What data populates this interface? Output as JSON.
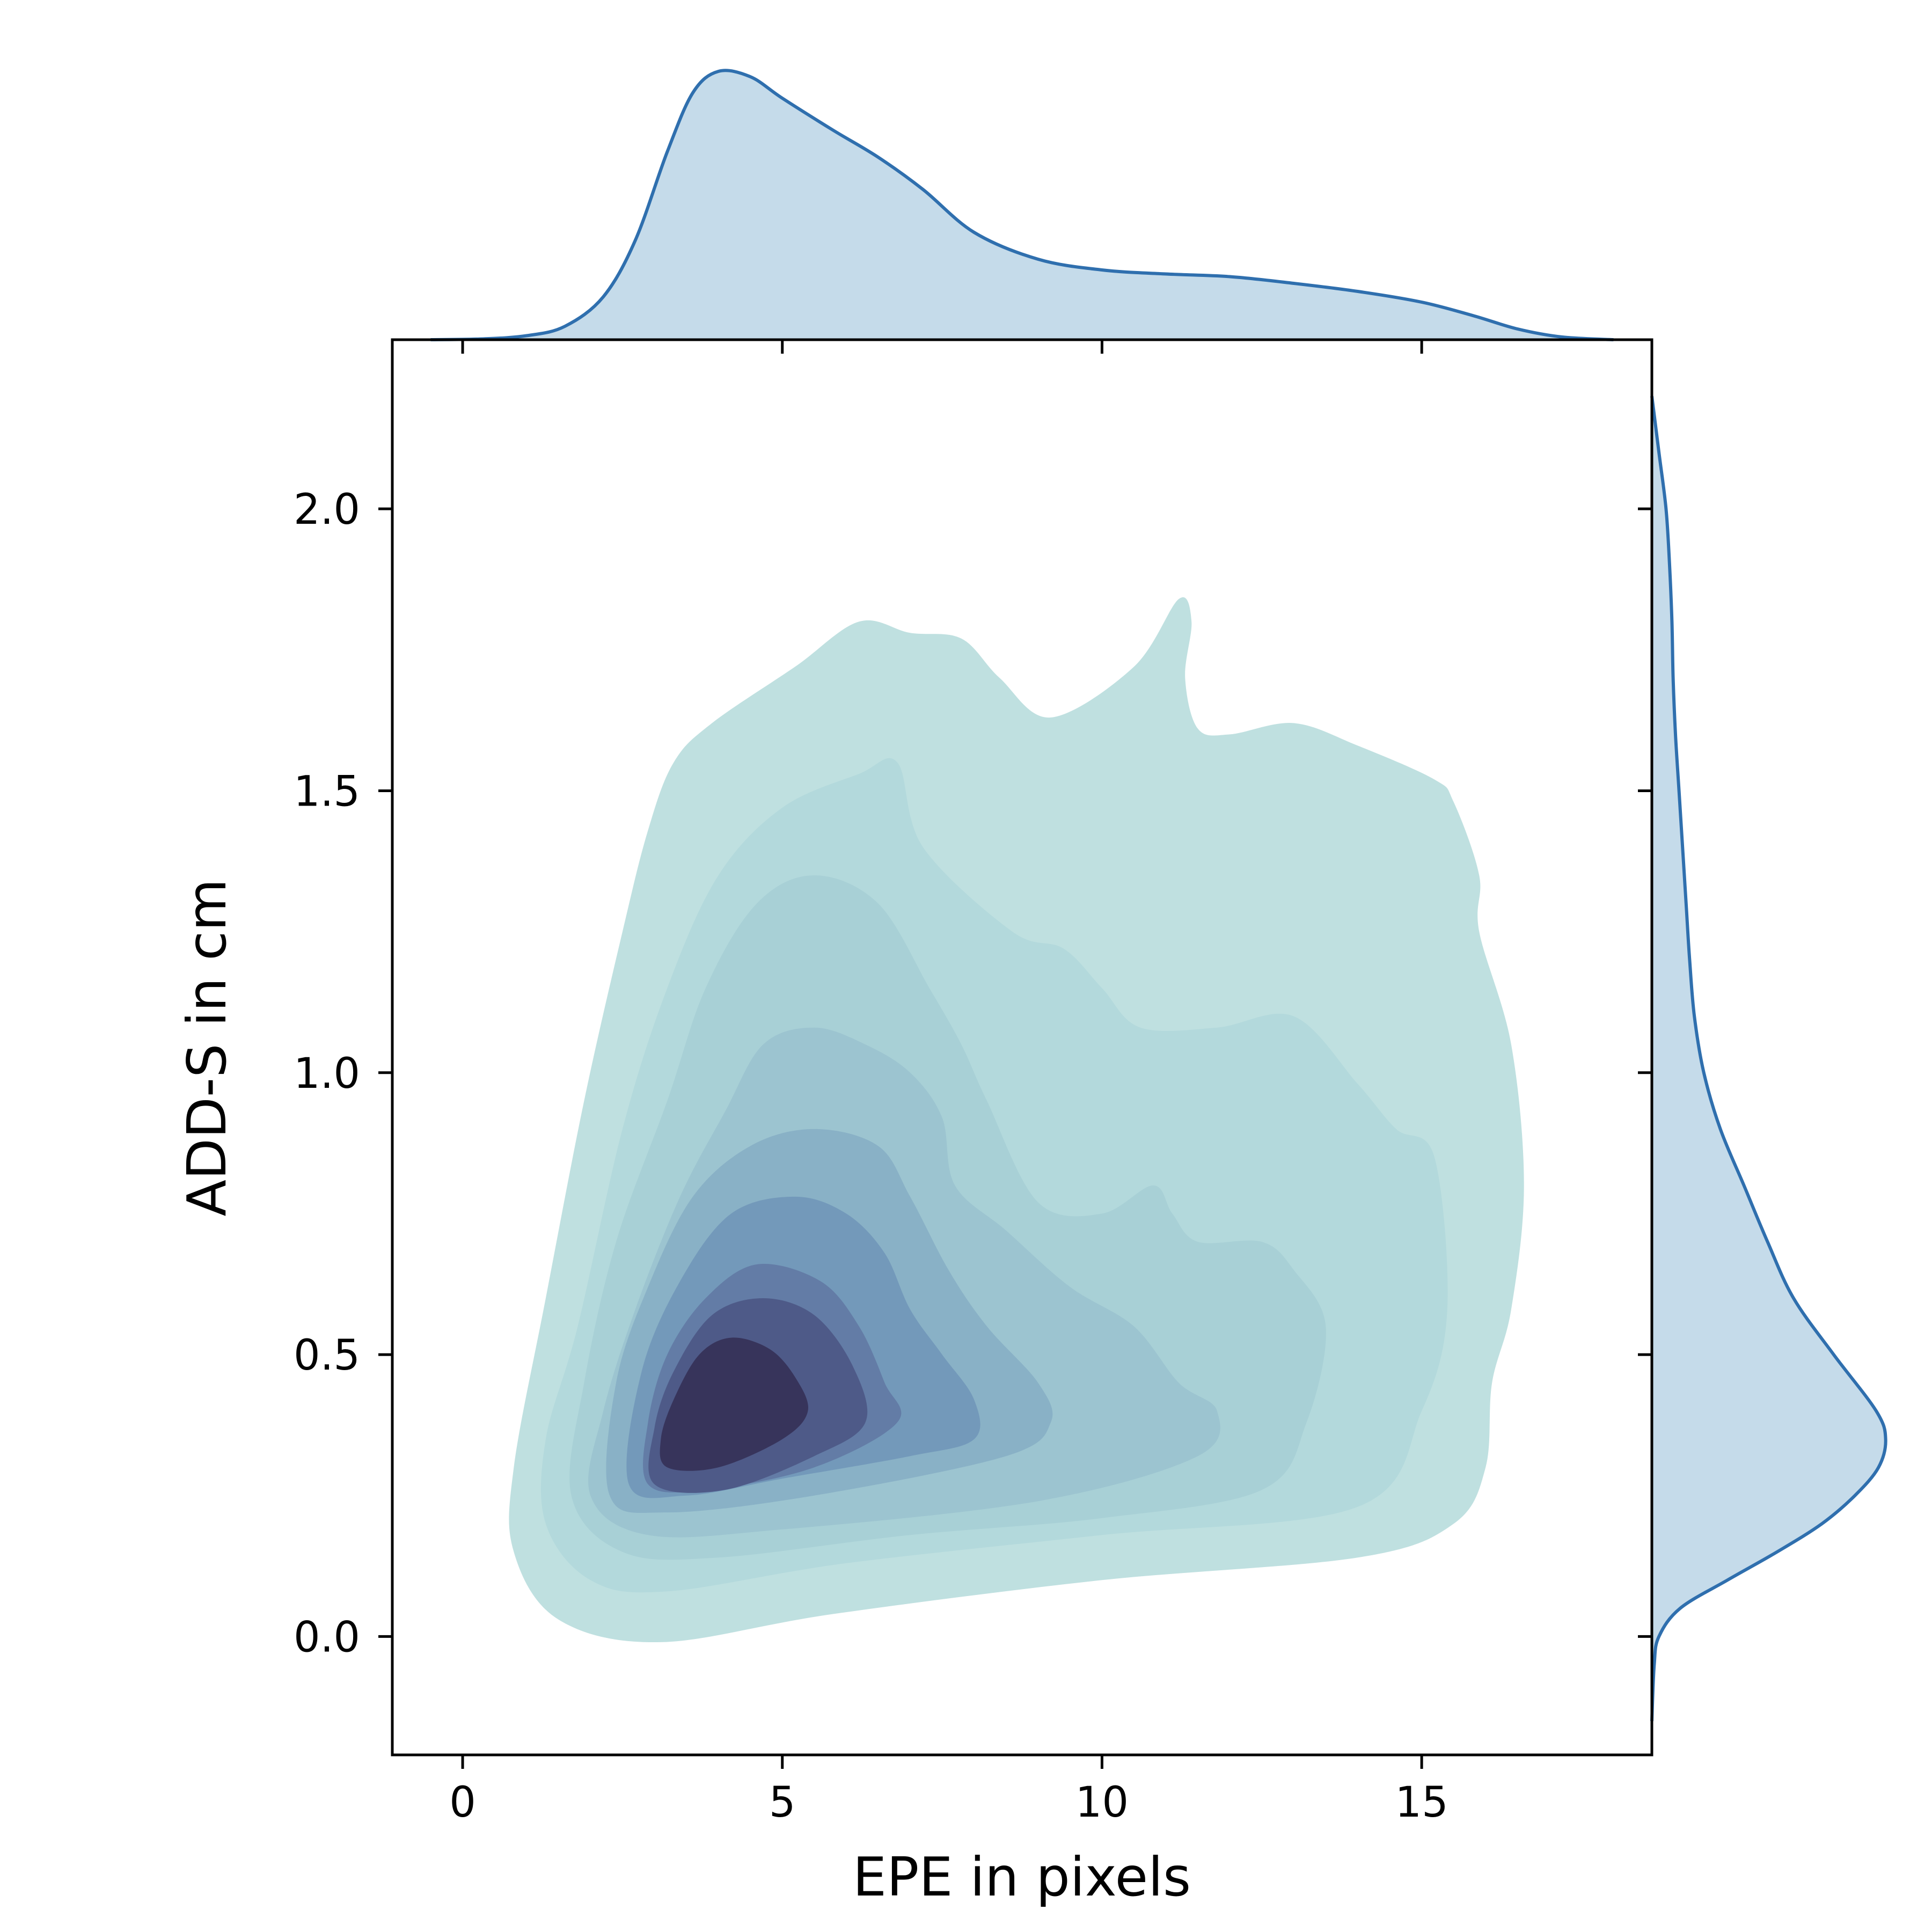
{
  "chart_data": {
    "type": "kde-joint",
    "xlabel": "EPE in pixels",
    "ylabel": "ADD-S in cm",
    "xlim": [
      -1.1,
      18.6
    ],
    "ylim": [
      -0.21,
      2.3
    ],
    "xticks": [
      0,
      5,
      10,
      15
    ],
    "xtick_labels": [
      "0",
      "5",
      "10",
      "15"
    ],
    "yticks": [
      0.0,
      0.5,
      1.0,
      1.5,
      2.0
    ],
    "ytick_labels": [
      "0.0",
      "0.5",
      "1.0",
      "1.5",
      "2.0"
    ],
    "contour_levels": [
      {
        "level": 1,
        "color": "#bfe0e0",
        "points": [
          [
            0.8,
            0.15
          ],
          [
            1.5,
            0.03
          ],
          [
            3.1,
            -0.01
          ],
          [
            5.8,
            0.04
          ],
          [
            10.0,
            0.1
          ],
          [
            14.0,
            0.14
          ],
          [
            15.5,
            0.2
          ],
          [
            16.0,
            0.3
          ],
          [
            16.1,
            0.45
          ],
          [
            16.4,
            0.58
          ],
          [
            16.6,
            0.8
          ],
          [
            16.4,
            1.05
          ],
          [
            15.9,
            1.25
          ],
          [
            15.9,
            1.35
          ],
          [
            15.5,
            1.48
          ],
          [
            15.2,
            1.52
          ],
          [
            14.0,
            1.58
          ],
          [
            13.0,
            1.62
          ],
          [
            12.0,
            1.6
          ],
          [
            11.5,
            1.61
          ],
          [
            11.3,
            1.7
          ],
          [
            11.4,
            1.8
          ],
          [
            11.2,
            1.84
          ],
          [
            10.5,
            1.72
          ],
          [
            9.2,
            1.63
          ],
          [
            8.4,
            1.7
          ],
          [
            7.8,
            1.77
          ],
          [
            7.0,
            1.78
          ],
          [
            6.2,
            1.8
          ],
          [
            5.2,
            1.72
          ],
          [
            3.9,
            1.62
          ],
          [
            3.3,
            1.55
          ],
          [
            2.9,
            1.43
          ],
          [
            2.5,
            1.25
          ],
          [
            1.9,
            0.95
          ],
          [
            1.3,
            0.6
          ],
          [
            0.8,
            0.3
          ]
        ]
      },
      {
        "level": 2,
        "color": "#b3d9dc",
        "points": [
          [
            1.3,
            0.2
          ],
          [
            2.0,
            0.1
          ],
          [
            3.2,
            0.08
          ],
          [
            6.0,
            0.13
          ],
          [
            10.0,
            0.18
          ],
          [
            14.0,
            0.23
          ],
          [
            15.0,
            0.4
          ],
          [
            15.4,
            0.58
          ],
          [
            15.2,
            0.85
          ],
          [
            14.6,
            0.9
          ],
          [
            14.0,
            0.98
          ],
          [
            13.0,
            1.1
          ],
          [
            11.8,
            1.08
          ],
          [
            10.6,
            1.08
          ],
          [
            10.0,
            1.15
          ],
          [
            9.4,
            1.22
          ],
          [
            8.6,
            1.25
          ],
          [
            7.2,
            1.4
          ],
          [
            6.8,
            1.55
          ],
          [
            6.2,
            1.53
          ],
          [
            5.0,
            1.47
          ],
          [
            4.0,
            1.35
          ],
          [
            3.2,
            1.15
          ],
          [
            2.5,
            0.9
          ],
          [
            1.8,
            0.55
          ],
          [
            1.3,
            0.35
          ]
        ]
      },
      {
        "level": 3,
        "color": "#a8d0d6",
        "points": [
          [
            1.7,
            0.25
          ],
          [
            2.5,
            0.15
          ],
          [
            4.0,
            0.14
          ],
          [
            7.0,
            0.18
          ],
          [
            10.0,
            0.21
          ],
          [
            12.5,
            0.26
          ],
          [
            13.2,
            0.38
          ],
          [
            13.5,
            0.55
          ],
          [
            13.0,
            0.65
          ],
          [
            12.5,
            0.7
          ],
          [
            11.5,
            0.7
          ],
          [
            11.1,
            0.75
          ],
          [
            10.8,
            0.8
          ],
          [
            10.0,
            0.75
          ],
          [
            9.0,
            0.77
          ],
          [
            8.2,
            0.95
          ],
          [
            7.8,
            1.05
          ],
          [
            7.3,
            1.15
          ],
          [
            6.5,
            1.3
          ],
          [
            5.5,
            1.35
          ],
          [
            4.6,
            1.3
          ],
          [
            3.8,
            1.15
          ],
          [
            3.2,
            0.95
          ],
          [
            2.4,
            0.7
          ],
          [
            1.9,
            0.45
          ]
        ]
      },
      {
        "level": 4,
        "color": "#9cc4d0",
        "points": [
          [
            2.0,
            0.25
          ],
          [
            2.9,
            0.18
          ],
          [
            5.0,
            0.19
          ],
          [
            9.0,
            0.24
          ],
          [
            11.5,
            0.32
          ],
          [
            11.8,
            0.4
          ],
          [
            11.2,
            0.45
          ],
          [
            10.5,
            0.55
          ],
          [
            9.5,
            0.62
          ],
          [
            8.5,
            0.72
          ],
          [
            7.7,
            0.8
          ],
          [
            7.5,
            0.92
          ],
          [
            7.0,
            1.0
          ],
          [
            6.3,
            1.05
          ],
          [
            5.5,
            1.08
          ],
          [
            4.7,
            1.05
          ],
          [
            4.1,
            0.93
          ],
          [
            3.4,
            0.78
          ],
          [
            2.7,
            0.58
          ],
          [
            2.2,
            0.4
          ]
        ]
      },
      {
        "level": 5,
        "color": "#89b1c6",
        "points": [
          [
            2.3,
            0.25
          ],
          [
            3.2,
            0.22
          ],
          [
            5.5,
            0.25
          ],
          [
            8.5,
            0.32
          ],
          [
            9.2,
            0.38
          ],
          [
            9.0,
            0.45
          ],
          [
            8.2,
            0.55
          ],
          [
            7.6,
            0.65
          ],
          [
            7.0,
            0.78
          ],
          [
            6.5,
            0.87
          ],
          [
            5.5,
            0.9
          ],
          [
            4.5,
            0.87
          ],
          [
            3.6,
            0.78
          ],
          [
            2.9,
            0.62
          ],
          [
            2.4,
            0.45
          ]
        ]
      },
      {
        "level": 6,
        "color": "#7399ba",
        "points": [
          [
            2.6,
            0.27
          ],
          [
            3.5,
            0.25
          ],
          [
            5.0,
            0.28
          ],
          [
            7.0,
            0.32
          ],
          [
            8.0,
            0.35
          ],
          [
            8.0,
            0.42
          ],
          [
            7.5,
            0.5
          ],
          [
            7.0,
            0.58
          ],
          [
            6.6,
            0.68
          ],
          [
            6.0,
            0.75
          ],
          [
            5.2,
            0.78
          ],
          [
            4.2,
            0.75
          ],
          [
            3.4,
            0.63
          ],
          [
            2.8,
            0.47
          ]
        ]
      },
      {
        "level": 7,
        "color": "#637ca6",
        "points": [
          [
            2.9,
            0.27
          ],
          [
            3.8,
            0.26
          ],
          [
            5.5,
            0.3
          ],
          [
            6.8,
            0.38
          ],
          [
            6.6,
            0.45
          ],
          [
            6.2,
            0.55
          ],
          [
            5.6,
            0.63
          ],
          [
            4.6,
            0.66
          ],
          [
            3.8,
            0.6
          ],
          [
            3.2,
            0.5
          ],
          [
            2.9,
            0.38
          ]
        ]
      },
      {
        "level": 8,
        "color": "#4e5a88",
        "points": [
          [
            3.0,
            0.27
          ],
          [
            4.1,
            0.26
          ],
          [
            5.5,
            0.32
          ],
          [
            6.3,
            0.38
          ],
          [
            6.1,
            0.48
          ],
          [
            5.5,
            0.57
          ],
          [
            4.7,
            0.6
          ],
          [
            3.9,
            0.57
          ],
          [
            3.3,
            0.47
          ],
          [
            3.0,
            0.37
          ]
        ]
      },
      {
        "level": 9,
        "color": "#37345b",
        "points": [
          [
            3.2,
            0.3
          ],
          [
            4.0,
            0.3
          ],
          [
            5.0,
            0.35
          ],
          [
            5.4,
            0.4
          ],
          [
            5.2,
            0.46
          ],
          [
            4.8,
            0.51
          ],
          [
            4.2,
            0.53
          ],
          [
            3.7,
            0.5
          ],
          [
            3.3,
            0.42
          ],
          [
            3.1,
            0.35
          ]
        ]
      }
    ],
    "marginal_x": {
      "color": "#2f6fae",
      "fill": "#c5dbea",
      "x": [
        -0.5,
        0.3,
        1.0,
        1.6,
        2.2,
        2.7,
        3.2,
        3.6,
        4.0,
        4.5,
        5.0,
        5.8,
        6.5,
        7.2,
        8.0,
        9.0,
        10.0,
        11.0,
        12.0,
        13.0,
        14.0,
        15.0,
        15.8,
        16.5,
        17.2,
        18.0
      ],
      "density": [
        0.0,
        0.003,
        0.015,
        0.05,
        0.16,
        0.37,
        0.7,
        0.92,
        1.0,
        0.98,
        0.9,
        0.78,
        0.68,
        0.56,
        0.4,
        0.3,
        0.26,
        0.245,
        0.235,
        0.21,
        0.18,
        0.14,
        0.09,
        0.04,
        0.01,
        0.0
      ]
    },
    "marginal_y": {
      "color": "#2f6fae",
      "fill": "#c5dbea",
      "y": [
        -0.15,
        -0.05,
        0.0,
        0.05,
        0.1,
        0.15,
        0.2,
        0.25,
        0.3,
        0.35,
        0.4,
        0.5,
        0.6,
        0.7,
        0.8,
        0.9,
        1.0,
        1.1,
        1.2,
        1.3,
        1.4,
        1.5,
        1.6,
        1.7,
        1.8,
        1.9,
        2.0,
        2.1,
        2.2
      ],
      "density": [
        0.0,
        0.01,
        0.03,
        0.12,
        0.32,
        0.53,
        0.72,
        0.86,
        0.96,
        0.99,
        0.95,
        0.77,
        0.6,
        0.49,
        0.39,
        0.29,
        0.22,
        0.18,
        0.16,
        0.145,
        0.13,
        0.115,
        0.1,
        0.09,
        0.085,
        0.075,
        0.06,
        0.03,
        0.0
      ]
    }
  }
}
